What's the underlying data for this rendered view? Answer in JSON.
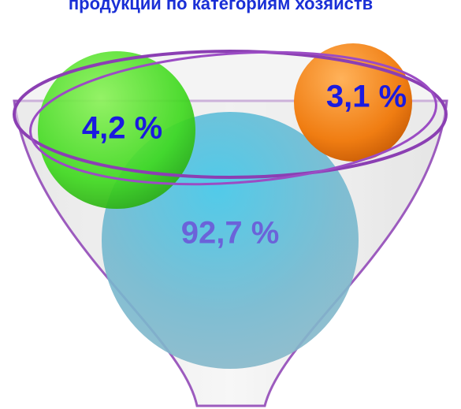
{
  "title": "продукции по категориям хозяйств",
  "items": [
    {
      "label": "4,2 %"
    },
    {
      "label": "3,1 %"
    },
    {
      "label": "92,7 %"
    }
  ]
}
